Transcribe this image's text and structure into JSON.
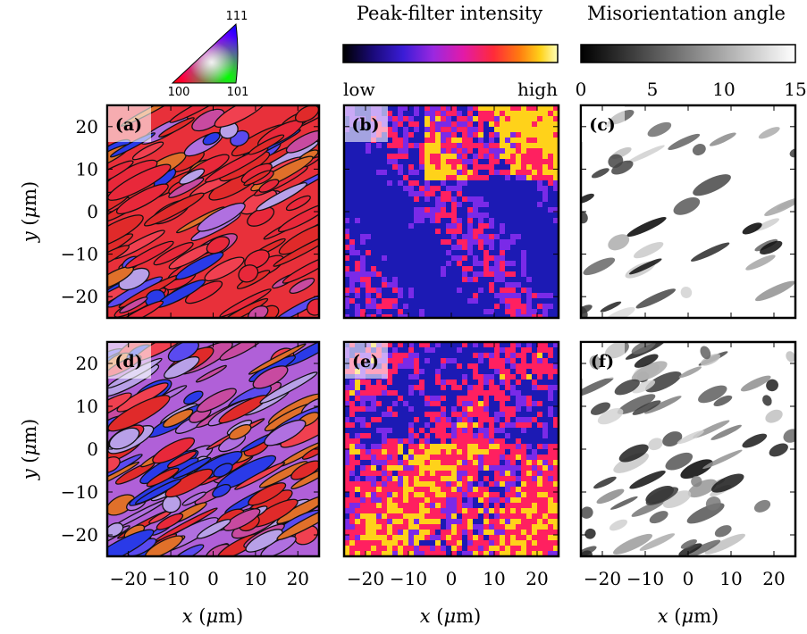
{
  "figure": {
    "colormap_titles": {
      "peak": "Peak-filter intensity",
      "misorientation": "Misorientation angle"
    },
    "peak_bar": {
      "low_label": "low",
      "high_label": "high",
      "colors": [
        "#000000",
        "#1a0a7a",
        "#3a1cd6",
        "#9a28e0",
        "#e21aa8",
        "#ff2a3a",
        "#ff7a10",
        "#ffd21a",
        "#ffffb8"
      ]
    },
    "misorientation_bar": {
      "ticks": [
        "0",
        "5",
        "10",
        "15"
      ],
      "colors": [
        "#000000",
        "#ffffff"
      ]
    },
    "ipf_key": {
      "corner_labels": [
        "111",
        "100",
        "101"
      ]
    },
    "axes": {
      "x_label_prefix": "x",
      "y_label_prefix": "y",
      "unit_mu": "μ",
      "unit_m": "m",
      "x_ticks": [
        "−20",
        "−10",
        "0",
        "10",
        "20"
      ],
      "y_ticks": [
        "20",
        "10",
        "0",
        "−10",
        "−20"
      ],
      "range": [
        -25,
        25
      ]
    },
    "panels": [
      {
        "label": "(a)",
        "map": "ipf"
      },
      {
        "label": "(b)",
        "map": "peak"
      },
      {
        "label": "(c)",
        "map": "miso"
      },
      {
        "label": "(d)",
        "map": "ipf"
      },
      {
        "label": "(e)",
        "map": "peak"
      },
      {
        "label": "(f)",
        "map": "miso"
      }
    ],
    "map_colors": {
      "ipf": [
        "#e8283a",
        "#e02a2a",
        "#c84aa0",
        "#b070e0",
        "#5a4af0",
        "#2a3ae8",
        "#e0702a",
        "#b8a0e8",
        "#f04050"
      ],
      "grain_boundary": "#111111",
      "peak_low": "#1c1ab4",
      "peak_mid": "#7a2ae8",
      "peak_hot": "#ff2060",
      "peak_vhot": "#ffd21a",
      "miso_bg": "#ffffff"
    }
  }
}
